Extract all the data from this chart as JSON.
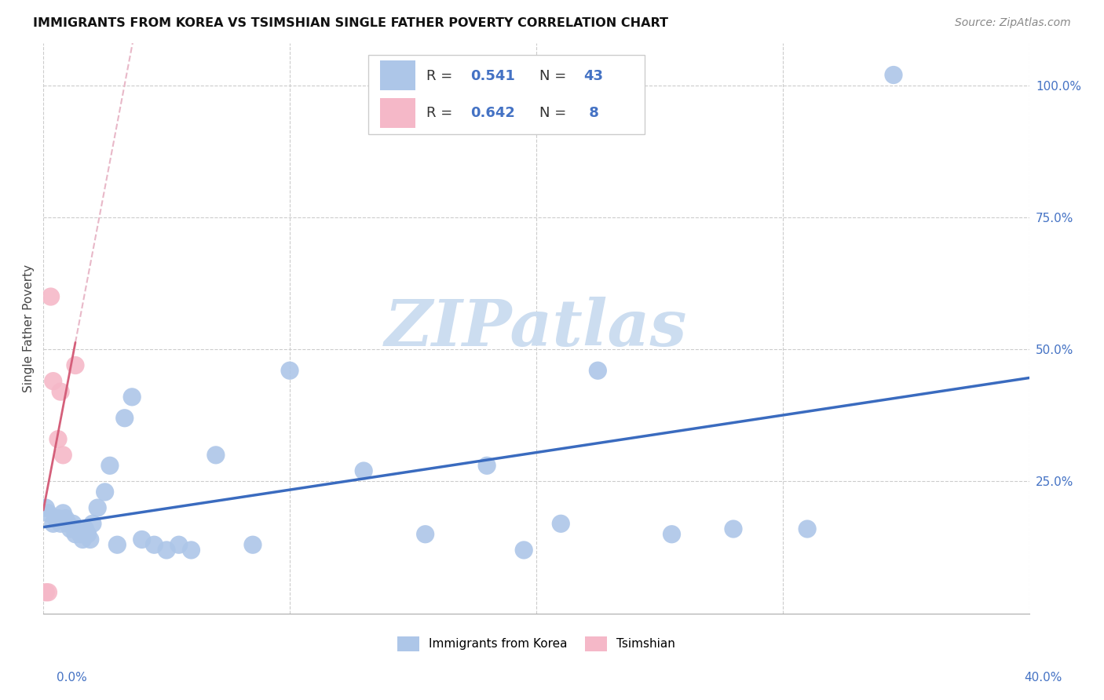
{
  "title": "IMMIGRANTS FROM KOREA VS TSIMSHIAN SINGLE FATHER POVERTY CORRELATION CHART",
  "source": "Source: ZipAtlas.com",
  "ylabel": "Single Father Poverty",
  "korea_R": 0.541,
  "korea_N": 43,
  "tsimshian_R": 0.642,
  "tsimshian_N": 8,
  "korea_color": "#adc6e8",
  "tsimshian_color": "#f5b8c8",
  "korea_line_color": "#3a6bbf",
  "tsimshian_line_color": "#d45f7a",
  "dashed_line_color": "#e8b8c8",
  "watermark_color": "#ccddf0",
  "xlim": [
    0.0,
    0.4
  ],
  "ylim": [
    0.0,
    1.08
  ],
  "ytick_positions": [
    0.25,
    0.5,
    0.75,
    1.0
  ],
  "ytick_labels": [
    "25.0%",
    "50.0%",
    "75.0%",
    "100.0%"
  ],
  "xtick_positions": [
    0.0,
    0.1,
    0.2,
    0.3,
    0.4
  ],
  "korea_x": [
    0.001,
    0.002,
    0.004,
    0.005,
    0.006,
    0.007,
    0.008,
    0.009,
    0.01,
    0.011,
    0.012,
    0.013,
    0.014,
    0.015,
    0.016,
    0.017,
    0.018,
    0.019,
    0.02,
    0.022,
    0.025,
    0.027,
    0.03,
    0.033,
    0.036,
    0.04,
    0.045,
    0.05,
    0.055,
    0.06,
    0.07,
    0.085,
    0.1,
    0.13,
    0.155,
    0.18,
    0.195,
    0.21,
    0.225,
    0.255,
    0.28,
    0.31,
    0.345
  ],
  "korea_y": [
    0.2,
    0.19,
    0.17,
    0.18,
    0.18,
    0.17,
    0.19,
    0.18,
    0.17,
    0.16,
    0.17,
    0.15,
    0.16,
    0.15,
    0.14,
    0.16,
    0.15,
    0.14,
    0.17,
    0.2,
    0.23,
    0.28,
    0.13,
    0.37,
    0.41,
    0.14,
    0.13,
    0.12,
    0.13,
    0.12,
    0.3,
    0.13,
    0.46,
    0.27,
    0.15,
    0.28,
    0.12,
    0.17,
    0.46,
    0.15,
    0.16,
    0.16,
    1.02
  ],
  "tsimshian_x": [
    0.001,
    0.002,
    0.003,
    0.004,
    0.006,
    0.007,
    0.008,
    0.013
  ],
  "tsimshian_y": [
    0.04,
    0.04,
    0.6,
    0.44,
    0.33,
    0.42,
    0.3,
    0.47
  ]
}
